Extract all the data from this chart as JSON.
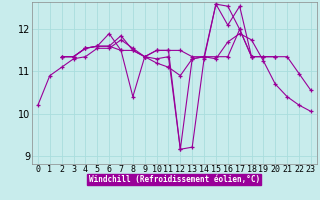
{
  "xlabel": "Windchill (Refroidissement éolien,°C)",
  "background_color": "#c8ecec",
  "line_color": "#990099",
  "grid_color": "#aadddd",
  "xlim_min": -0.5,
  "xlim_max": 23.5,
  "ylim_min": 8.8,
  "ylim_max": 12.65,
  "yticks": [
    9,
    10,
    11,
    12
  ],
  "xtick_labels": [
    "0",
    "1",
    "2",
    "3",
    "4",
    "5",
    "6",
    "7",
    "8",
    "9",
    "10",
    "11",
    "12",
    "13",
    "14",
    "15",
    "16",
    "17",
    "18",
    "19",
    "20",
    "21",
    "22",
    "23"
  ],
  "series": [
    [
      10.2,
      10.9,
      11.1,
      11.3,
      11.35,
      11.55,
      11.55,
      11.75,
      11.55,
      11.35,
      11.2,
      11.1,
      10.9,
      11.3,
      11.35,
      11.3,
      11.7,
      11.9,
      11.75,
      11.25,
      10.7,
      10.4,
      10.2,
      10.05
    ],
    [
      null,
      null,
      11.35,
      11.35,
      11.55,
      11.6,
      11.6,
      11.85,
      11.5,
      11.35,
      11.3,
      11.35,
      9.15,
      9.2,
      11.3,
      12.6,
      12.55,
      12.0,
      11.35,
      11.35,
      11.35,
      11.35,
      10.95,
      10.55
    ],
    [
      null,
      null,
      11.35,
      11.35,
      11.55,
      11.6,
      11.9,
      11.5,
      10.4,
      11.35,
      11.5,
      11.5,
      9.15,
      11.3,
      11.35,
      12.6,
      12.1,
      12.55,
      11.35,
      null,
      null,
      null,
      null,
      null
    ],
    [
      null,
      null,
      11.35,
      11.35,
      11.55,
      11.6,
      11.6,
      11.5,
      11.5,
      11.35,
      11.5,
      11.5,
      11.5,
      11.35,
      11.35,
      11.35,
      11.35,
      12.0,
      11.35,
      11.35,
      11.35,
      null,
      null,
      null
    ]
  ],
  "tick_fontsize": 6,
  "xlabel_fontsize": 5.5,
  "ylabel_color": "#990099",
  "spine_color": "#888888"
}
